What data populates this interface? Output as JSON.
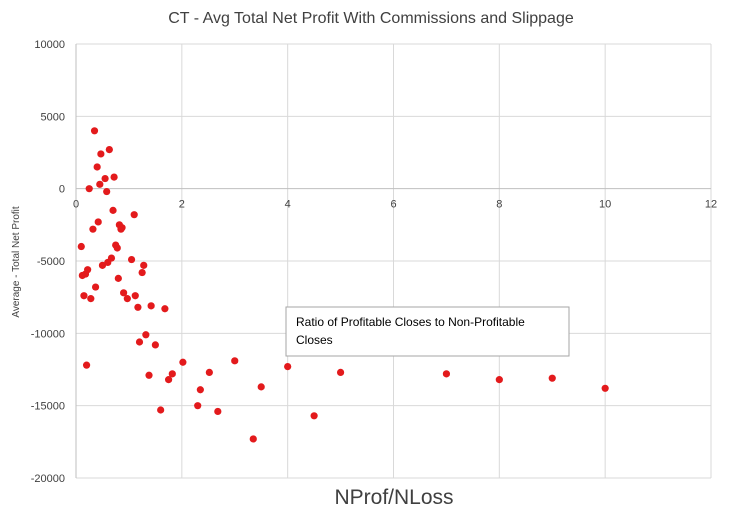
{
  "chart_data": {
    "type": "scatter",
    "title": "CT - Avg Total Net Profit With Commissions and Slippage",
    "xlabel": "NProf/NLoss",
    "ylabel": "Average - Total Net Profit",
    "xlim": [
      0,
      12
    ],
    "ylim": [
      -20000,
      10000
    ],
    "x_ticks": [
      0,
      2,
      4,
      6,
      8,
      10,
      12
    ],
    "y_ticks": [
      10000,
      5000,
      0,
      -5000,
      -10000,
      -15000,
      -20000
    ],
    "grid": true,
    "legend": "none",
    "colors": {
      "points": "#e31a1c",
      "grid": "#d9d9d9",
      "axis": "#bfbfbf"
    },
    "annotation": {
      "lines": [
        "Ratio of Profitable Closes to Non-Profitable",
        "Closes"
      ]
    },
    "series": [
      {
        "points": [
          [
            0.1,
            -4000
          ],
          [
            0.12,
            -6000
          ],
          [
            0.15,
            -7400
          ],
          [
            0.18,
            -5900
          ],
          [
            0.2,
            -12200
          ],
          [
            0.22,
            -5600
          ],
          [
            0.25,
            0
          ],
          [
            0.28,
            -7600
          ],
          [
            0.32,
            -2800
          ],
          [
            0.35,
            4000
          ],
          [
            0.37,
            -6800
          ],
          [
            0.4,
            1500
          ],
          [
            0.42,
            -2300
          ],
          [
            0.45,
            300
          ],
          [
            0.47,
            2400
          ],
          [
            0.5,
            -5300
          ],
          [
            0.55,
            700
          ],
          [
            0.58,
            -200
          ],
          [
            0.6,
            -5100
          ],
          [
            0.63,
            2700
          ],
          [
            0.67,
            -4800
          ],
          [
            0.7,
            -1500
          ],
          [
            0.72,
            800
          ],
          [
            0.75,
            -3900
          ],
          [
            0.78,
            -4100
          ],
          [
            0.8,
            -6200
          ],
          [
            0.82,
            -2500
          ],
          [
            0.85,
            -2800
          ],
          [
            0.87,
            -2700
          ],
          [
            0.9,
            -7200
          ],
          [
            0.97,
            -7600
          ],
          [
            1.05,
            -4900
          ],
          [
            1.1,
            -1800
          ],
          [
            1.12,
            -7400
          ],
          [
            1.17,
            -8200
          ],
          [
            1.2,
            -10600
          ],
          [
            1.25,
            -5800
          ],
          [
            1.28,
            -5300
          ],
          [
            1.32,
            -10100
          ],
          [
            1.38,
            -12900
          ],
          [
            1.42,
            -8100
          ],
          [
            1.5,
            -10800
          ],
          [
            1.6,
            -15300
          ],
          [
            1.68,
            -8300
          ],
          [
            1.75,
            -13200
          ],
          [
            1.82,
            -12800
          ],
          [
            2.02,
            -12000
          ],
          [
            2.3,
            -15000
          ],
          [
            2.35,
            -13900
          ],
          [
            2.52,
            -12700
          ],
          [
            2.68,
            -15400
          ],
          [
            3.0,
            -11900
          ],
          [
            3.35,
            -17300
          ],
          [
            3.5,
            -13700
          ],
          [
            4.0,
            -12300
          ],
          [
            4.5,
            -15700
          ],
          [
            5.0,
            -12700
          ],
          [
            7.0,
            -12800
          ],
          [
            8.0,
            -13200
          ],
          [
            9.0,
            -13100
          ],
          [
            10.0,
            -13800
          ]
        ]
      }
    ]
  }
}
